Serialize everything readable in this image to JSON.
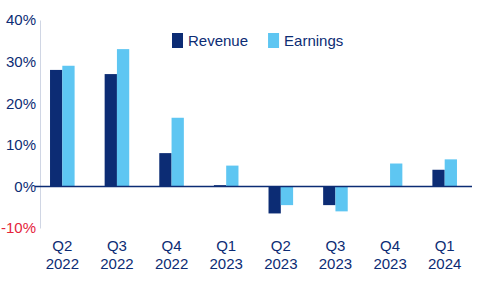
{
  "chart_data": {
    "type": "bar",
    "categories": [
      "Q2 2022",
      "Q3 2022",
      "Q4 2022",
      "Q1 2023",
      "Q2 2023",
      "Q3 2023",
      "Q4 2023",
      "Q1 2024"
    ],
    "series": [
      {
        "name": "Revenue",
        "color": "#0c2c74",
        "values": [
          28,
          27,
          8,
          0.3,
          -6.5,
          -4.5,
          0,
          4
        ]
      },
      {
        "name": "Earnings",
        "color": "#5ec6f2",
        "values": [
          29,
          33,
          16.5,
          5,
          -4.5,
          -6,
          5.5,
          6.5
        ]
      }
    ],
    "ylim": [
      -10,
      40
    ],
    "yticks": [
      {
        "value": -10,
        "label": "-10%"
      },
      {
        "value": 0,
        "label": "0%"
      },
      {
        "value": 10,
        "label": "10%"
      },
      {
        "value": 20,
        "label": "20%"
      },
      {
        "value": 30,
        "label": "30%"
      },
      {
        "value": 40,
        "label": "40%"
      }
    ],
    "grid": false,
    "legend": "top"
  }
}
